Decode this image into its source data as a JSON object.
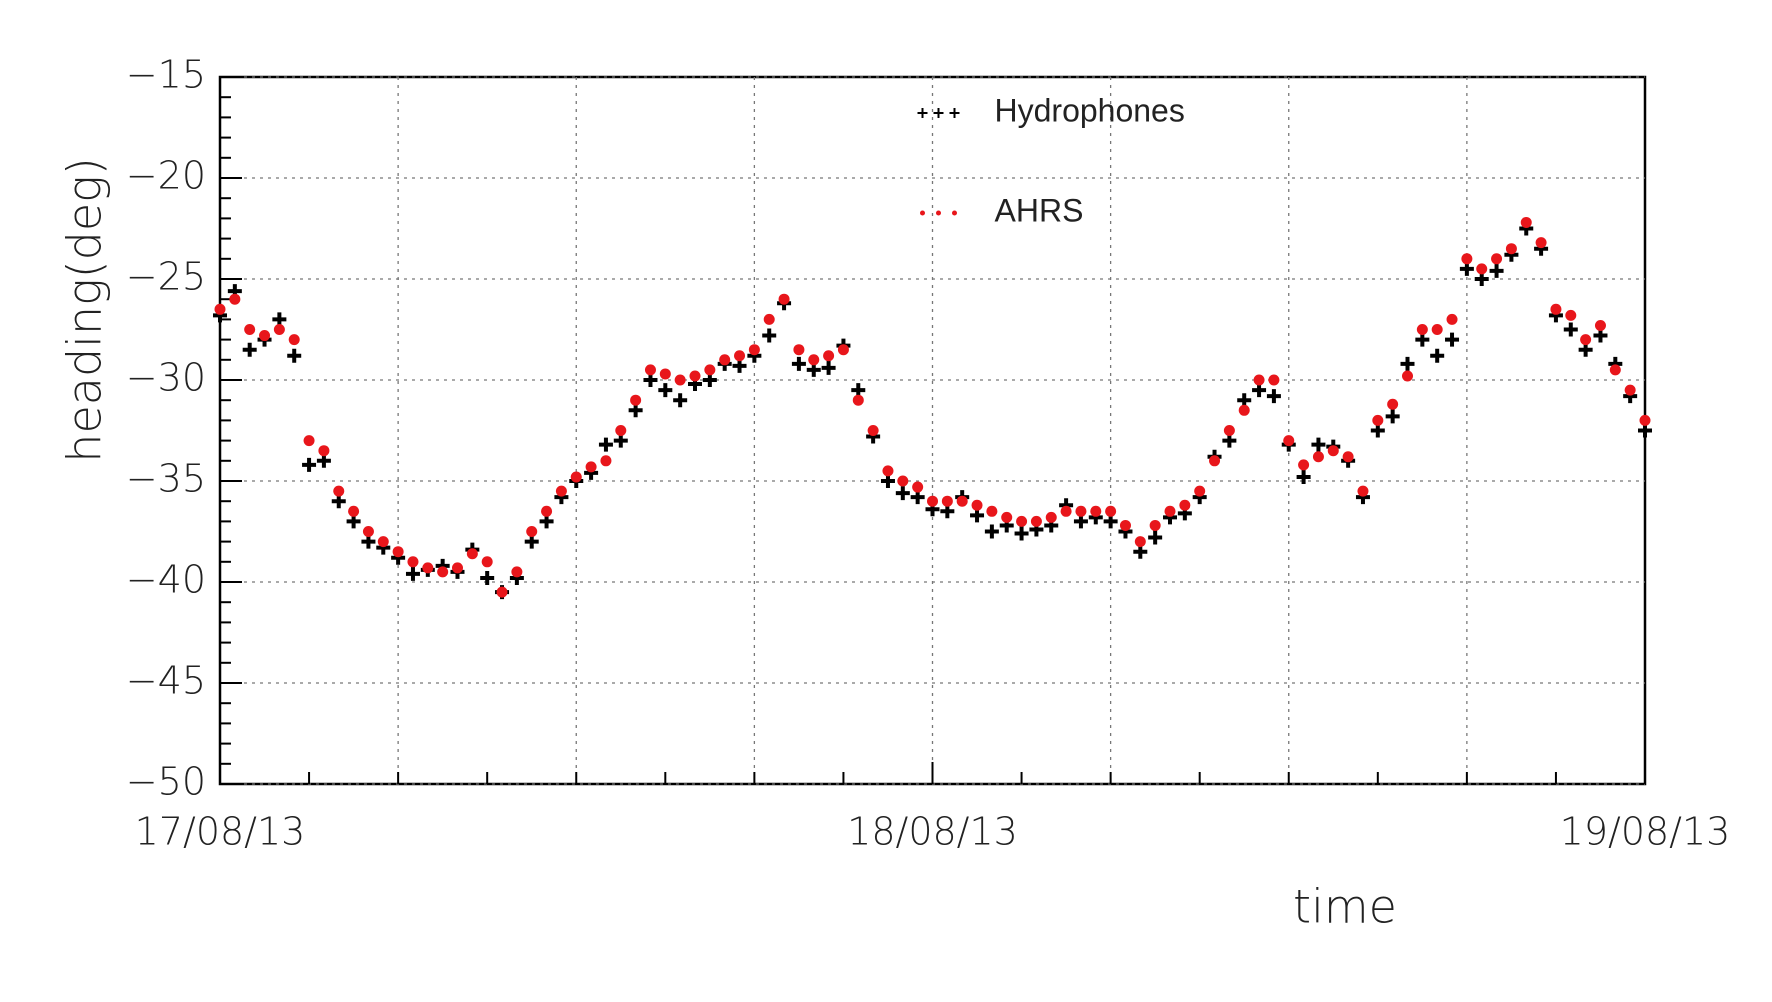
{
  "chart_data": {
    "type": "scatter",
    "x_label": "time",
    "y_label": "heading(deg)",
    "xlim": [
      0,
      48
    ],
    "ylim": [
      -50,
      -15
    ],
    "xticks": [
      {
        "value": 0,
        "label": "17/08/13"
      },
      {
        "value": 24,
        "label": "18/08/13"
      },
      {
        "value": 48,
        "label": "19/08/13"
      }
    ],
    "xminor_ticks": [
      3,
      6,
      9,
      12,
      15,
      18,
      21,
      27,
      30,
      33,
      36,
      39,
      42,
      45
    ],
    "xgrid": [
      6,
      12,
      18,
      24,
      30,
      36,
      42
    ],
    "yticks": [
      {
        "value": -50,
        "label": "−50"
      },
      {
        "value": -45,
        "label": "−45"
      },
      {
        "value": -40,
        "label": "−40"
      },
      {
        "value": -35,
        "label": "−35"
      },
      {
        "value": -30,
        "label": "−30"
      },
      {
        "value": -25,
        "label": "−25"
      },
      {
        "value": -20,
        "label": "−20"
      },
      {
        "value": -15,
        "label": "−15"
      }
    ],
    "yminor_ticks": [
      -49,
      -48,
      -47,
      -46,
      -44,
      -43,
      -42,
      -41,
      -39,
      -38,
      -37,
      -36,
      -34,
      -33,
      -32,
      -31,
      -29,
      -28,
      -27,
      -26,
      -24,
      -23,
      -22,
      -21,
      -19,
      -18,
      -17,
      -16
    ],
    "grid": true,
    "legend_position": "top-center",
    "x": [
      0,
      0.5,
      1,
      1.5,
      2,
      2.5,
      3,
      3.5,
      4,
      4.5,
      5,
      5.5,
      6,
      6.5,
      7,
      7.5,
      8,
      8.5,
      9,
      9.5,
      10,
      10.5,
      11,
      11.5,
      12,
      12.5,
      13,
      13.5,
      14,
      14.5,
      15,
      15.5,
      16,
      16.5,
      17,
      17.5,
      18,
      18.5,
      19,
      19.5,
      20,
      20.5,
      21,
      21.5,
      22,
      22.5,
      23,
      23.5,
      24,
      24.5,
      25,
      25.5,
      26,
      26.5,
      27,
      27.5,
      28,
      28.5,
      29,
      29.5,
      30,
      30.5,
      31,
      31.5,
      32,
      32.5,
      33,
      33.5,
      34,
      34.5,
      35,
      35.5,
      36,
      36.5,
      37,
      37.5,
      38,
      38.5,
      39,
      39.5,
      40,
      40.5,
      41,
      41.5,
      42,
      42.5,
      43,
      43.5,
      44,
      44.5,
      45,
      45.5,
      46,
      46.5,
      47,
      47.5,
      48
    ],
    "series": [
      {
        "name": "Hydrophones",
        "color": "#000000",
        "marker": "plus",
        "values": [
          -26.8,
          -25.6,
          -28.5,
          -28,
          -27,
          -28.8,
          -34.2,
          -34,
          -36,
          -37,
          -38,
          -38.3,
          -38.8,
          -39.6,
          -39.4,
          -39.2,
          -39.5,
          -38.4,
          -39.8,
          -40.5,
          -39.8,
          -38,
          -37,
          -35.8,
          -35,
          -34.6,
          -33.2,
          -33,
          -31.5,
          -30,
          -30.5,
          -31,
          -30.2,
          -30,
          -29.2,
          -29.3,
          -28.8,
          -27.8,
          -26.2,
          -29.2,
          -29.5,
          -29.4,
          -28.3,
          -30.5,
          -32.8,
          -35,
          -35.6,
          -35.8,
          -36.4,
          -36.5,
          -35.8,
          -36.7,
          -37.5,
          -37.2,
          -37.6,
          -37.4,
          -37.2,
          -36.2,
          -37,
          -36.8,
          -37,
          -37.5,
          -38.5,
          -37.8,
          -36.8,
          -36.6,
          -35.8,
          -33.8,
          -33,
          -31,
          -30.5,
          -30.8,
          -33.2,
          -34.8,
          -33.2,
          -33.3,
          -34,
          -35.8,
          -32.5,
          -31.8,
          -29.2,
          -28,
          -28.8,
          -28,
          -24.5,
          -25,
          -24.6,
          -23.8,
          -22.5,
          -23.5,
          -26.8,
          -27.5,
          -28.5,
          -27.8,
          -29.2,
          -30.8,
          -32.5
        ]
      },
      {
        "name": "AHRS",
        "color": "#e8161b",
        "marker": "circle",
        "values": [
          -26.5,
          -26,
          -27.5,
          -27.8,
          -27.5,
          -28,
          -33,
          -33.5,
          -35.5,
          -36.5,
          -37.5,
          -38,
          -38.5,
          -39,
          -39.3,
          -39.5,
          -39.3,
          -38.6,
          -39,
          -40.5,
          -39.5,
          -37.5,
          -36.5,
          -35.5,
          -34.8,
          -34.3,
          -34,
          -32.5,
          -31,
          -29.5,
          -29.7,
          -30,
          -29.8,
          -29.5,
          -29,
          -28.8,
          -28.5,
          -27,
          -26,
          -28.5,
          -29,
          -28.8,
          -28.5,
          -31,
          -32.5,
          -34.5,
          -35,
          -35.3,
          -36,
          -36,
          -36,
          -36.2,
          -36.5,
          -36.8,
          -37,
          -37,
          -36.8,
          -36.5,
          -36.5,
          -36.5,
          -36.5,
          -37.2,
          -38,
          -37.2,
          -36.5,
          -36.2,
          -35.5,
          -34,
          -32.5,
          -31.5,
          -30,
          -30,
          -33,
          -34.2,
          -33.8,
          -33.5,
          -33.8,
          -35.5,
          -32,
          -31.2,
          -29.8,
          -27.5,
          -27.5,
          -27,
          -24,
          -24.5,
          -24,
          -23.5,
          -22.2,
          -23.2,
          -26.5,
          -26.8,
          -28,
          -27.3,
          -29.5,
          -30.5,
          -32
        ]
      }
    ]
  }
}
